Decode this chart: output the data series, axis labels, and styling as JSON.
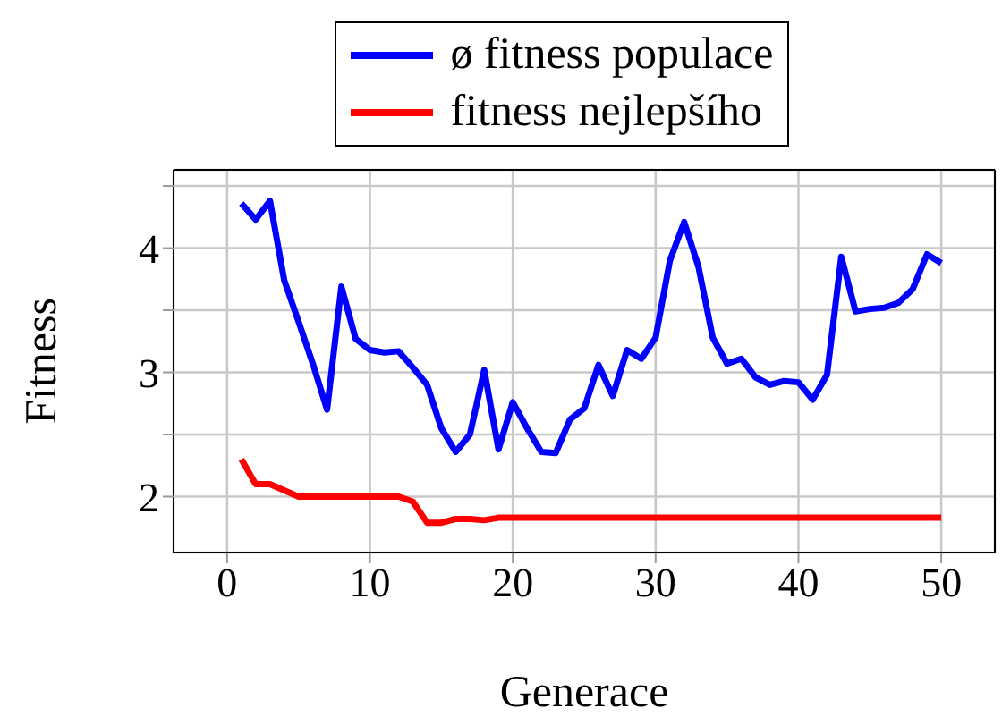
{
  "chart_data": {
    "type": "line",
    "xlabel": "Generace",
    "ylabel": "Fitness",
    "x": [
      1,
      2,
      3,
      4,
      5,
      6,
      7,
      8,
      9,
      10,
      11,
      12,
      13,
      14,
      15,
      16,
      17,
      18,
      19,
      20,
      21,
      22,
      23,
      24,
      25,
      26,
      27,
      28,
      29,
      30,
      31,
      32,
      33,
      34,
      35,
      36,
      37,
      38,
      39,
      40,
      41,
      42,
      43,
      44,
      45,
      46,
      47,
      48,
      49,
      50
    ],
    "series": [
      {
        "name": "ø fitness populace",
        "color": "#0000ff",
        "values": [
          4.36,
          4.23,
          4.38,
          3.74,
          3.41,
          3.07,
          2.7,
          3.69,
          3.27,
          3.18,
          3.16,
          3.17,
          3.04,
          2.9,
          2.55,
          2.36,
          2.5,
          3.02,
          2.38,
          2.76,
          2.55,
          2.36,
          2.35,
          2.62,
          2.71,
          3.06,
          2.81,
          3.18,
          3.11,
          3.28,
          3.9,
          4.21,
          3.85,
          3.28,
          3.07,
          3.11,
          2.96,
          2.9,
          2.93,
          2.92,
          2.78,
          2.98,
          3.93,
          3.49,
          3.51,
          3.52,
          3.56,
          3.67,
          3.95,
          3.88
        ]
      },
      {
        "name": "fitness nejlepšího",
        "color": "#ff0000",
        "values": [
          2.3,
          2.1,
          2.1,
          2.05,
          2.0,
          2.0,
          2.0,
          2.0,
          2.0,
          2.0,
          2.0,
          2.0,
          1.96,
          1.79,
          1.79,
          1.82,
          1.82,
          1.81,
          1.83,
          1.83,
          1.83,
          1.83,
          1.83,
          1.83,
          1.83,
          1.83,
          1.83,
          1.83,
          1.83,
          1.83,
          1.83,
          1.83,
          1.83,
          1.83,
          1.83,
          1.83,
          1.83,
          1.83,
          1.83,
          1.83,
          1.83,
          1.83,
          1.83,
          1.83,
          1.83,
          1.83,
          1.83,
          1.83,
          1.83,
          1.83
        ]
      }
    ],
    "xlim": [
      -3.75,
      53.75
    ],
    "xticks": [
      0,
      10,
      20,
      30,
      40,
      50
    ],
    "ylim": [
      1.55,
      4.63
    ],
    "yticks": [
      2,
      {
        "value": 2.5,
        "label": null
      },
      3,
      {
        "value": 3.5,
        "label": null
      },
      4,
      {
        "value": 4.5,
        "label": null
      }
    ],
    "grid": true,
    "legend": "top",
    "marker": "none",
    "line_style": "solid"
  }
}
